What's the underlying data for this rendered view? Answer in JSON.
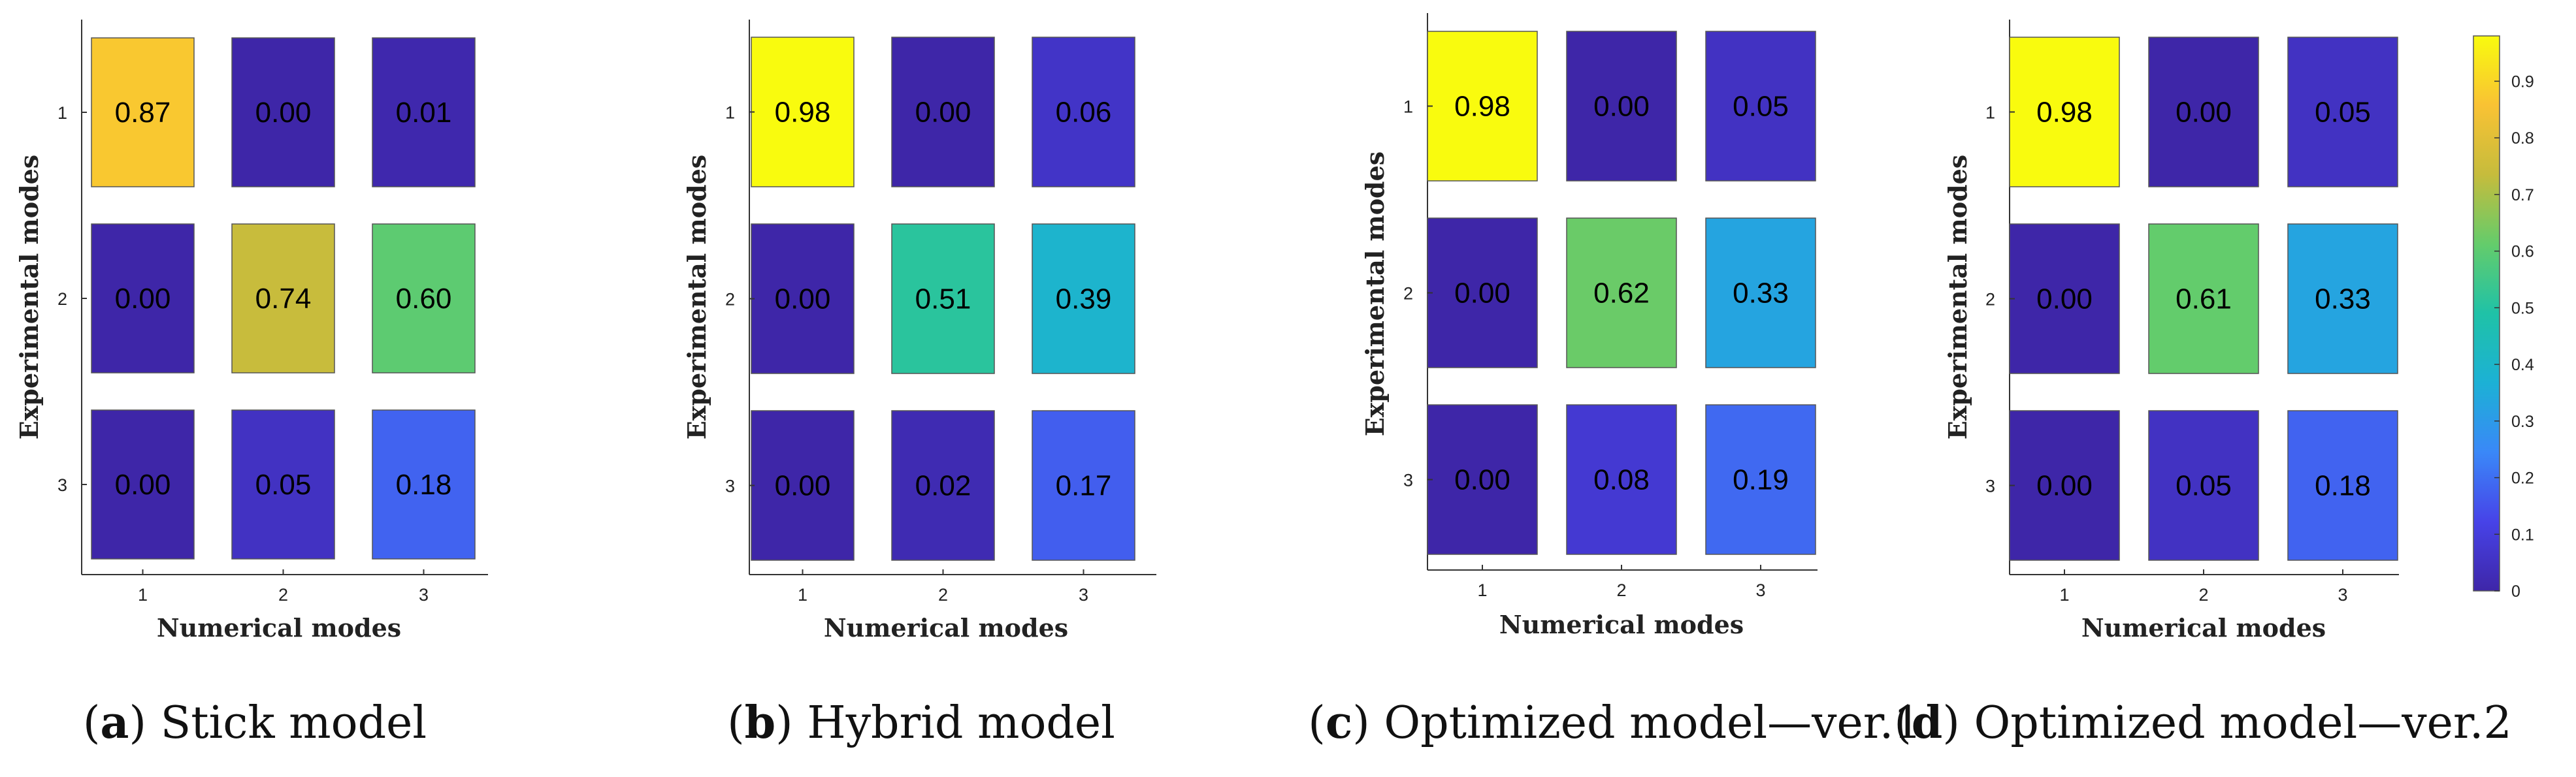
{
  "figure": {
    "colormap_stops": [
      "#3e26a8",
      "#4743e8",
      "#3a88f8",
      "#1cb1d5",
      "#1fc2a7",
      "#64cc6b",
      "#c6bc3c",
      "#f9c234",
      "#f9fb0e"
    ],
    "colorbar": {
      "min": 0,
      "max": 0.98,
      "ticks": [
        "0",
        "0.1",
        "0.2",
        "0.3",
        "0.4",
        "0.5",
        "0.6",
        "0.7",
        "0.8",
        "0.9"
      ]
    }
  },
  "chart_data": [
    {
      "type": "heatmap",
      "xlabel": "Numerical modes",
      "ylabel": "Experimental modes",
      "x_ticks": [
        "1",
        "2",
        "3"
      ],
      "y_ticks": [
        "1",
        "2",
        "3"
      ],
      "values": [
        [
          0.87,
          0.0,
          0.01
        ],
        [
          0.0,
          0.74,
          0.6
        ],
        [
          0.0,
          0.05,
          0.18
        ]
      ],
      "labels": [
        [
          "0.87",
          "0.00",
          "0.01"
        ],
        [
          "0.00",
          "0.74",
          "0.60"
        ],
        [
          "0.00",
          "0.05",
          "0.18"
        ]
      ],
      "caption_letter": "a",
      "caption_open": "(",
      "caption_close": ")",
      "caption_text": "Stick model"
    },
    {
      "type": "heatmap",
      "xlabel": "Numerical modes",
      "ylabel": "Experimental modes",
      "x_ticks": [
        "1",
        "2",
        "3"
      ],
      "y_ticks": [
        "1",
        "2",
        "3"
      ],
      "values": [
        [
          0.98,
          0.0,
          0.06
        ],
        [
          0.0,
          0.51,
          0.39
        ],
        [
          0.0,
          0.02,
          0.17
        ]
      ],
      "labels": [
        [
          "0.98",
          "0.00",
          "0.06"
        ],
        [
          "0.00",
          "0.51",
          "0.39"
        ],
        [
          "0.00",
          "0.02",
          "0.17"
        ]
      ],
      "caption_letter": "b",
      "caption_open": "(",
      "caption_close": ")",
      "caption_text": "Hybrid model"
    },
    {
      "type": "heatmap",
      "xlabel": "Numerical modes",
      "ylabel": "Experimental modes",
      "x_ticks": [
        "1",
        "2",
        "3"
      ],
      "y_ticks": [
        "1",
        "2",
        "3"
      ],
      "values": [
        [
          0.98,
          0.0,
          0.05
        ],
        [
          0.0,
          0.62,
          0.33
        ],
        [
          0.0,
          0.08,
          0.19
        ]
      ],
      "labels": [
        [
          "0.98",
          "0.00",
          "0.05"
        ],
        [
          "0.00",
          "0.62",
          "0.33"
        ],
        [
          "0.00",
          "0.08",
          "0.19"
        ]
      ],
      "caption_letter": "c",
      "caption_open": "(",
      "caption_close": ")",
      "caption_text": "Optimized model—ver.1"
    },
    {
      "type": "heatmap",
      "xlabel": "Numerical modes",
      "ylabel": "Experimental modes",
      "x_ticks": [
        "1",
        "2",
        "3"
      ],
      "y_ticks": [
        "1",
        "2",
        "3"
      ],
      "values": [
        [
          0.98,
          0.0,
          0.05
        ],
        [
          0.0,
          0.61,
          0.33
        ],
        [
          0.0,
          0.05,
          0.18
        ]
      ],
      "labels": [
        [
          "0.98",
          "0.00",
          "0.05"
        ],
        [
          "0.00",
          "0.61",
          "0.33"
        ],
        [
          "0.00",
          "0.05",
          "0.18"
        ]
      ],
      "caption_letter": "d",
      "caption_open": "(",
      "caption_close": ")",
      "caption_text": "Optimized model—ver.2"
    }
  ]
}
